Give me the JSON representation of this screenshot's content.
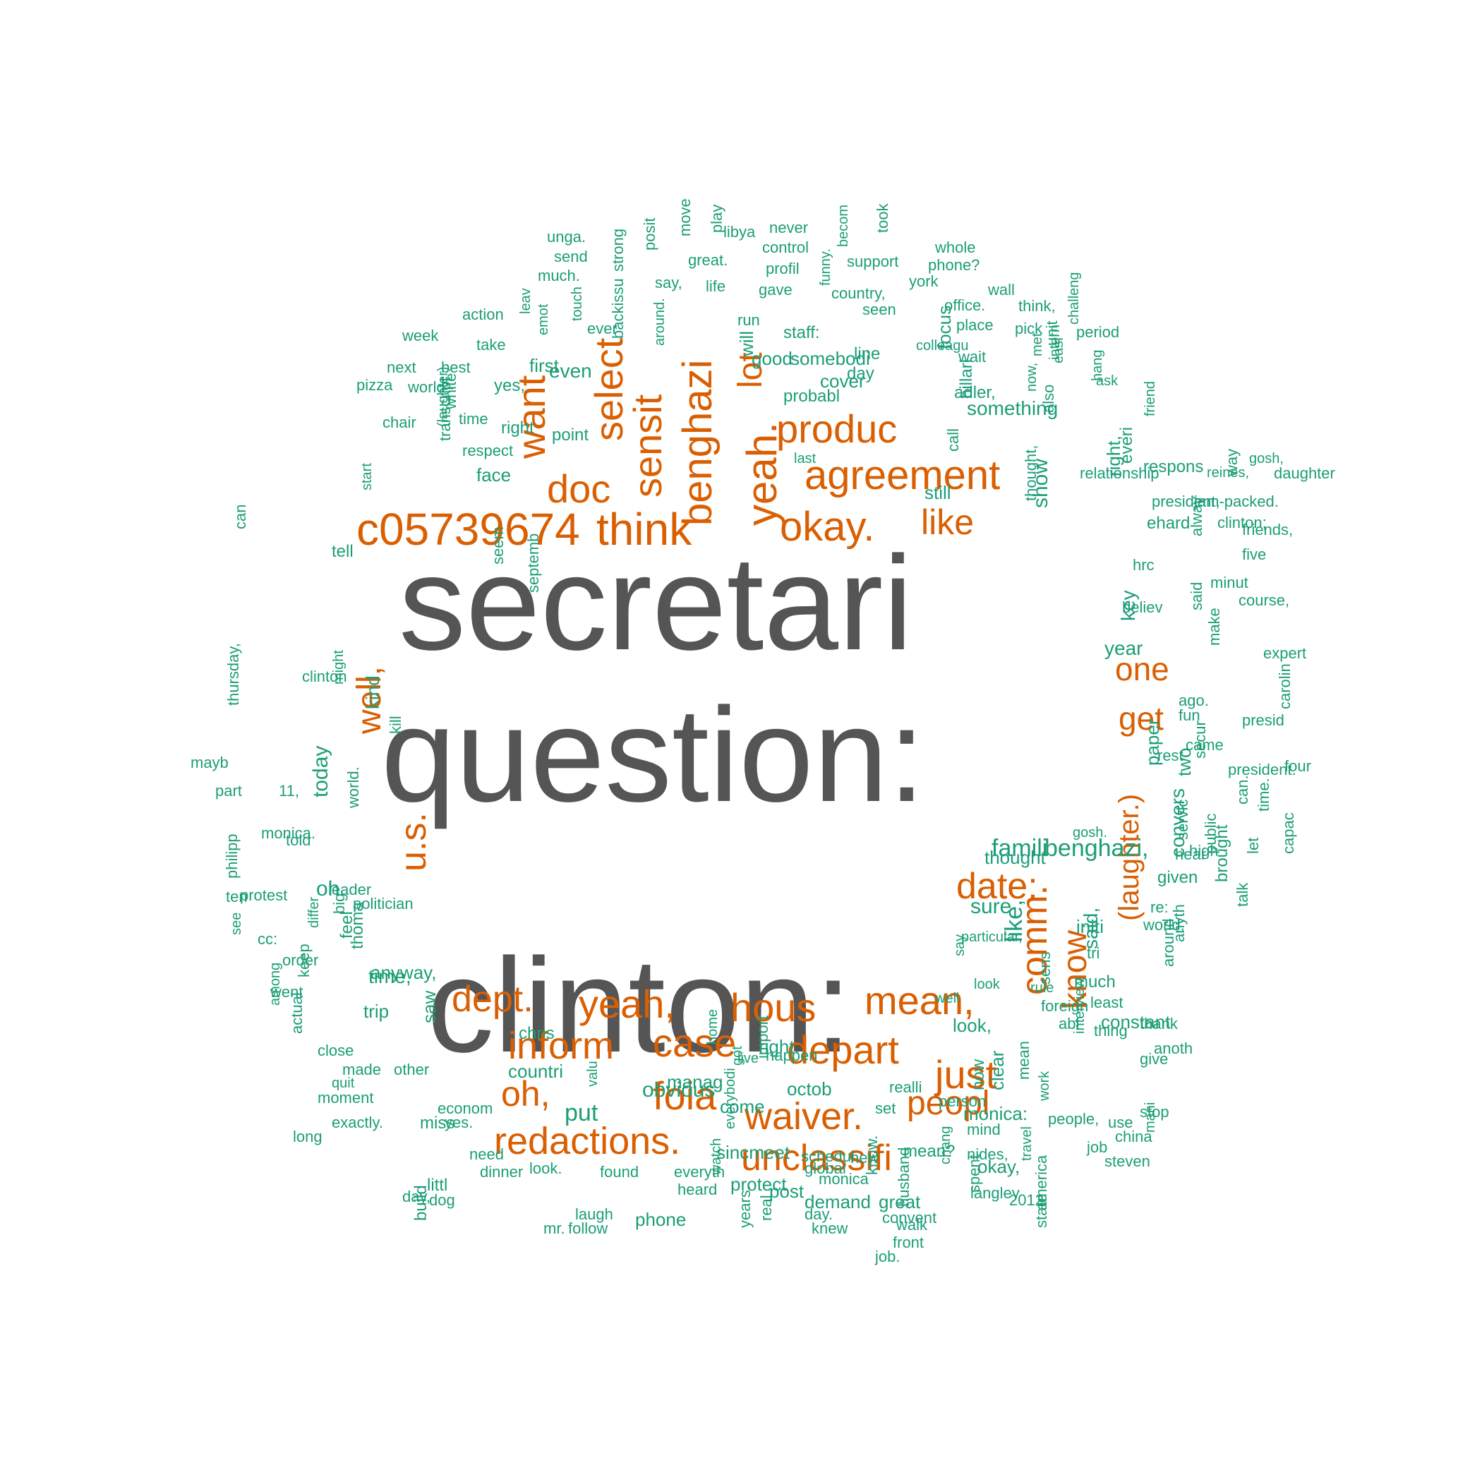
{
  "colors": {
    "tier1": "#555555",
    "tier2": "#d95f02",
    "tier3": "#1b9e77"
  },
  "words": [
    {
      "t": "secretari",
      "c": "tier1"
    },
    {
      "t": "question:",
      "c": "tier1"
    },
    {
      "t": "clinton:",
      "c": "tier1"
    },
    {
      "t": "c05739674",
      "c": "tier2"
    },
    {
      "t": "think",
      "c": "tier2"
    },
    {
      "t": "okay.",
      "c": "tier2"
    },
    {
      "t": "agreement",
      "c": "tier2"
    },
    {
      "t": "produc",
      "c": "tier2"
    },
    {
      "t": "doc",
      "c": "tier2"
    },
    {
      "t": "like",
      "c": "tier2"
    },
    {
      "t": "benghazi",
      "c": "tier2"
    },
    {
      "t": "sensit",
      "c": "tier2"
    },
    {
      "t": "select",
      "c": "tier2"
    },
    {
      "t": "want",
      "c": "tier2"
    },
    {
      "t": "yeah.",
      "c": "tier2"
    },
    {
      "t": "lot",
      "c": "tier2"
    },
    {
      "t": "one",
      "c": "tier2"
    },
    {
      "t": "get",
      "c": "tier2"
    },
    {
      "t": "well,",
      "c": "tier2"
    },
    {
      "t": "u.s.",
      "c": "tier2"
    },
    {
      "t": "date:",
      "c": "tier2"
    },
    {
      "t": "(laughter.)",
      "c": "tier2"
    },
    {
      "t": "dept.",
      "c": "tier2"
    },
    {
      "t": "yeah,",
      "c": "tier2"
    },
    {
      "t": "hous",
      "c": "tier2"
    },
    {
      "t": "mean,",
      "c": "tier2"
    },
    {
      "t": "comm.",
      "c": "tier2"
    },
    {
      "t": "know",
      "c": "tier2"
    },
    {
      "t": "inform",
      "c": "tier2"
    },
    {
      "t": "case",
      "c": "tier2"
    },
    {
      "t": "depart",
      "c": "tier2"
    },
    {
      "t": "just",
      "c": "tier2"
    },
    {
      "t": "oh,",
      "c": "tier2"
    },
    {
      "t": "foia",
      "c": "tier2"
    },
    {
      "t": "waiver.",
      "c": "tier2"
    },
    {
      "t": "peopl",
      "c": "tier2"
    },
    {
      "t": "redactions.",
      "c": "tier2"
    },
    {
      "t": "unclassifi",
      "c": "tier2"
    },
    {
      "t": "unga.",
      "c": "tier3"
    },
    {
      "t": "send",
      "c": "tier3"
    },
    {
      "t": "much.",
      "c": "tier3"
    },
    {
      "t": "strong",
      "c": "tier3"
    },
    {
      "t": "posit",
      "c": "tier3"
    },
    {
      "t": "move",
      "c": "tier3"
    },
    {
      "t": "play",
      "c": "tier3"
    },
    {
      "t": "libya",
      "c": "tier3"
    },
    {
      "t": "never",
      "c": "tier3"
    },
    {
      "t": "becom",
      "c": "tier3"
    },
    {
      "t": "took",
      "c": "tier3"
    },
    {
      "t": "whole",
      "c": "tier3"
    },
    {
      "t": "control",
      "c": "tier3"
    },
    {
      "t": "great.",
      "c": "tier3"
    },
    {
      "t": "profil",
      "c": "tier3"
    },
    {
      "t": "support",
      "c": "tier3"
    },
    {
      "t": "phone?",
      "c": "tier3"
    },
    {
      "t": "say,",
      "c": "tier3"
    },
    {
      "t": "life",
      "c": "tier3"
    },
    {
      "t": "funny.",
      "c": "tier3"
    },
    {
      "t": "york",
      "c": "tier3"
    },
    {
      "t": "wall",
      "c": "tier3"
    },
    {
      "t": "leav",
      "c": "tier3"
    },
    {
      "t": "touch",
      "c": "tier3"
    },
    {
      "t": "ever",
      "c": "tier3"
    },
    {
      "t": "backissu",
      "c": "tier3"
    },
    {
      "t": "around.",
      "c": "tier3"
    },
    {
      "t": "gave",
      "c": "tier3"
    },
    {
      "t": "country,",
      "c": "tier3"
    },
    {
      "t": "action",
      "c": "tier3"
    },
    {
      "t": "emot",
      "c": "tier3"
    },
    {
      "t": "run",
      "c": "tier3"
    },
    {
      "t": "seen",
      "c": "tier3"
    },
    {
      "t": "office.",
      "c": "tier3"
    },
    {
      "t": "think,",
      "c": "tier3"
    },
    {
      "t": "staff:",
      "c": "tier3"
    },
    {
      "t": "place",
      "c": "tier3"
    },
    {
      "t": "pick",
      "c": "tier3"
    },
    {
      "t": "period",
      "c": "tier3"
    },
    {
      "t": "week",
      "c": "tier3"
    },
    {
      "t": "take",
      "c": "tier3"
    },
    {
      "t": "first",
      "c": "tier3"
    },
    {
      "t": "will",
      "c": "tier3"
    },
    {
      "t": "good",
      "c": "tier3"
    },
    {
      "t": "somebodi",
      "c": "tier3"
    },
    {
      "t": "line",
      "c": "tier3"
    },
    {
      "t": "colleagu",
      "c": "tier3"
    },
    {
      "t": "wait",
      "c": "tier3"
    },
    {
      "t": "unit",
      "c": "tier3"
    },
    {
      "t": "challeng",
      "c": "tier3"
    },
    {
      "t": "next",
      "c": "tier3"
    },
    {
      "t": "best",
      "c": "tier3"
    },
    {
      "t": "day",
      "c": "tier3"
    },
    {
      "t": "focus",
      "c": "tier3"
    },
    {
      "t": "met",
      "c": "tier3"
    },
    {
      "t": "hang",
      "c": "tier3"
    },
    {
      "t": "pizza",
      "c": "tier3"
    },
    {
      "t": "world",
      "c": "tier3"
    },
    {
      "t": "yes,",
      "c": "tier3"
    },
    {
      "t": "even",
      "c": "tier3"
    },
    {
      "t": "cover",
      "c": "tier3"
    },
    {
      "t": "intern",
      "c": "tier3"
    },
    {
      "t": "probabl",
      "c": "tier3"
    },
    {
      "t": "ask",
      "c": "tier3"
    },
    {
      "t": "easi",
      "c": "tier3"
    },
    {
      "t": "adler,",
      "c": "tier3"
    },
    {
      "t": "hillari",
      "c": "tier3"
    },
    {
      "t": "something",
      "c": "tier3"
    },
    {
      "t": "now,",
      "c": "tier3"
    },
    {
      "t": "friend",
      "c": "tier3"
    },
    {
      "t": "chair",
      "c": "tier3"
    },
    {
      "t": "white",
      "c": "tier3"
    },
    {
      "t": "time",
      "c": "tier3"
    },
    {
      "t": "also",
      "c": "tier3"
    },
    {
      "t": "right",
      "c": "tier3"
    },
    {
      "t": "(laughter)",
      "c": "tier3"
    },
    {
      "t": "point",
      "c": "tier3"
    },
    {
      "t": "transcript",
      "c": "tier3"
    },
    {
      "t": "respect",
      "c": "tier3"
    },
    {
      "t": "last",
      "c": "tier3"
    },
    {
      "t": "call",
      "c": "tier3"
    },
    {
      "t": "face",
      "c": "tier3"
    },
    {
      "t": "relationship",
      "c": "tier3"
    },
    {
      "t": "still",
      "c": "tier3"
    },
    {
      "t": "way",
      "c": "tier3"
    },
    {
      "t": "reines,",
      "c": "tier3"
    },
    {
      "t": "gosh,",
      "c": "tier3"
    },
    {
      "t": "right,",
      "c": "tier3"
    },
    {
      "t": "everi",
      "c": "tier3"
    },
    {
      "t": "respons",
      "c": "tier3"
    },
    {
      "t": "daughter",
      "c": "tier3"
    },
    {
      "t": "start",
      "c": "tier3"
    },
    {
      "t": "thought,",
      "c": "tier3"
    },
    {
      "t": "president,",
      "c": "tier3"
    },
    {
      "t": "jam-packed.",
      "c": "tier3"
    },
    {
      "t": "show",
      "c": "tier3"
    },
    {
      "t": "ehard",
      "c": "tier3"
    },
    {
      "t": "clinton;",
      "c": "tier3"
    },
    {
      "t": "friends,",
      "c": "tier3"
    },
    {
      "t": "can",
      "c": "tier3"
    },
    {
      "t": "tell",
      "c": "tier3"
    },
    {
      "t": "alway",
      "c": "tier3"
    },
    {
      "t": "seem",
      "c": "tier3"
    },
    {
      "t": "five",
      "c": "tier3"
    },
    {
      "t": "hrc",
      "c": "tier3"
    },
    {
      "t": "septemb",
      "c": "tier3"
    },
    {
      "t": "minut",
      "c": "tier3"
    },
    {
      "t": "course,",
      "c": "tier3"
    },
    {
      "t": "believ",
      "c": "tier3"
    },
    {
      "t": "said",
      "c": "tier3"
    },
    {
      "t": "key",
      "c": "tier3"
    },
    {
      "t": "year",
      "c": "tier3"
    },
    {
      "t": "expert",
      "c": "tier3"
    },
    {
      "t": "make",
      "c": "tier3"
    },
    {
      "t": "clinton",
      "c": "tier3"
    },
    {
      "t": "might",
      "c": "tier3"
    },
    {
      "t": "ago.",
      "c": "tier3"
    },
    {
      "t": "thursday,",
      "c": "tier3"
    },
    {
      "t": "carolin",
      "c": "tier3"
    },
    {
      "t": "presid",
      "c": "tier3"
    },
    {
      "t": "fun",
      "c": "tier3"
    },
    {
      "t": "kind",
      "c": "tier3"
    },
    {
      "t": "came",
      "c": "tier3"
    },
    {
      "t": "kill",
      "c": "tier3"
    },
    {
      "t": "rest",
      "c": "tier3"
    },
    {
      "t": "secur",
      "c": "tier3"
    },
    {
      "t": "mayb",
      "c": "tier3"
    },
    {
      "t": "paper",
      "c": "tier3"
    },
    {
      "t": "two",
      "c": "tier3"
    },
    {
      "t": "president.",
      "c": "tier3"
    },
    {
      "t": "four",
      "c": "tier3"
    },
    {
      "t": "part",
      "c": "tier3"
    },
    {
      "t": "11,",
      "c": "tier3"
    },
    {
      "t": "today",
      "c": "tier3"
    },
    {
      "t": "world.",
      "c": "tier3"
    },
    {
      "t": "can.",
      "c": "tier3"
    },
    {
      "t": "time.",
      "c": "tier3"
    },
    {
      "t": "monica.",
      "c": "tier3"
    },
    {
      "t": "told",
      "c": "tier3"
    },
    {
      "t": "servic",
      "c": "tier3"
    },
    {
      "t": "capac",
      "c": "tier3"
    },
    {
      "t": "philipp",
      "c": "tier3"
    },
    {
      "t": "public",
      "c": "tier3"
    },
    {
      "t": "let",
      "c": "tier3"
    },
    {
      "t": "ten",
      "c": "tier3"
    },
    {
      "t": "leader",
      "c": "tier3"
    },
    {
      "t": "hear",
      "c": "tier3"
    },
    {
      "t": "thought",
      "c": "tier3"
    },
    {
      "t": "famili",
      "c": "tier3"
    },
    {
      "t": "benghazi,",
      "c": "tier3"
    },
    {
      "t": "high",
      "c": "tier3"
    },
    {
      "t": "convers",
      "c": "tier3"
    },
    {
      "t": "oh.",
      "c": "tier3"
    },
    {
      "t": "big",
      "c": "tier3"
    },
    {
      "t": "politician",
      "c": "tier3"
    },
    {
      "t": "gosh.",
      "c": "tier3"
    },
    {
      "t": "given",
      "c": "tier3"
    },
    {
      "t": "brought",
      "c": "tier3"
    },
    {
      "t": "protest",
      "c": "tier3"
    },
    {
      "t": "sure",
      "c": "tier3"
    },
    {
      "t": "like,",
      "c": "tier3"
    },
    {
      "t": "re:",
      "c": "tier3"
    },
    {
      "t": "talk",
      "c": "tier3"
    },
    {
      "t": "see",
      "c": "tier3"
    },
    {
      "t": "cc:",
      "c": "tier3"
    },
    {
      "t": "differ",
      "c": "tier3"
    },
    {
      "t": "feel",
      "c": "tier3"
    },
    {
      "t": "thoma",
      "c": "tier3"
    },
    {
      "t": "said,",
      "c": "tier3"
    },
    {
      "t": "initi",
      "c": "tier3"
    },
    {
      "t": "world,",
      "c": "tier3"
    },
    {
      "t": "particular,",
      "c": "tier3"
    },
    {
      "t": "anyway,",
      "c": "tier3"
    },
    {
      "t": "say",
      "c": "tier3"
    },
    {
      "t": "tri",
      "c": "tier3"
    },
    {
      "t": "anyth",
      "c": "tier3"
    },
    {
      "t": "order",
      "c": "tier3"
    },
    {
      "t": "time,",
      "c": "tier3"
    },
    {
      "t": "look",
      "c": "tier3"
    },
    {
      "t": "rule",
      "c": "tier3"
    },
    {
      "t": "around",
      "c": "tier3"
    },
    {
      "t": "keep",
      "c": "tier3"
    },
    {
      "t": "much",
      "c": "tier3"
    },
    {
      "t": "well",
      "c": "tier3"
    },
    {
      "t": "sens",
      "c": "tier3"
    },
    {
      "t": "least",
      "c": "tier3"
    },
    {
      "t": "went",
      "c": "tier3"
    },
    {
      "t": "trip",
      "c": "tier3"
    },
    {
      "t": "foreign",
      "c": "tier3"
    },
    {
      "t": "among",
      "c": "tier3"
    },
    {
      "t": "constant",
      "c": "tier3"
    },
    {
      "t": "thing",
      "c": "tier3"
    },
    {
      "t": "abl",
      "c": "tier3"
    },
    {
      "t": "look,",
      "c": "tier3"
    },
    {
      "t": "thank",
      "c": "tier3"
    },
    {
      "t": "saw",
      "c": "tier3"
    },
    {
      "t": "home",
      "c": "tier3"
    },
    {
      "t": "chris",
      "c": "tier3"
    },
    {
      "t": "actual",
      "c": "tier3"
    },
    {
      "t": "interview",
      "c": "tier3"
    },
    {
      "t": "happen",
      "c": "tier3"
    },
    {
      "t": "close",
      "c": "tier3"
    },
    {
      "t": "anoth",
      "c": "tier3"
    },
    {
      "t": "countri",
      "c": "tier3"
    },
    {
      "t": "import",
      "c": "tier3"
    },
    {
      "t": "right.",
      "c": "tier3"
    },
    {
      "t": "live",
      "c": "tier3"
    },
    {
      "t": "give",
      "c": "tier3"
    },
    {
      "t": "made",
      "c": "tier3"
    },
    {
      "t": "other",
      "c": "tier3"
    },
    {
      "t": "obvious",
      "c": "tier3"
    },
    {
      "t": "manag",
      "c": "tier3"
    },
    {
      "t": "octob",
      "c": "tier3"
    },
    {
      "t": "got",
      "c": "tier3"
    },
    {
      "t": "come",
      "c": "tier3"
    },
    {
      "t": "realli",
      "c": "tier3"
    },
    {
      "t": "now",
      "c": "tier3"
    },
    {
      "t": "set",
      "c": "tier3"
    },
    {
      "t": "person",
      "c": "tier3"
    },
    {
      "t": "clear",
      "c": "tier3"
    },
    {
      "t": "mean",
      "c": "tier3"
    },
    {
      "t": "stop",
      "c": "tier3"
    },
    {
      "t": "moment",
      "c": "tier3"
    },
    {
      "t": "quit",
      "c": "tier3"
    },
    {
      "t": "valu",
      "c": "tier3"
    },
    {
      "t": "work",
      "c": "tier3"
    },
    {
      "t": "put",
      "c": "tier3"
    },
    {
      "t": "econom",
      "c": "tier3"
    },
    {
      "t": "people,",
      "c": "tier3"
    },
    {
      "t": "exactly.",
      "c": "tier3"
    },
    {
      "t": "yes.",
      "c": "tier3"
    },
    {
      "t": "mind",
      "c": "tier3"
    },
    {
      "t": "use",
      "c": "tier3"
    },
    {
      "t": "china",
      "c": "tier3"
    },
    {
      "t": "mani",
      "c": "tier3"
    },
    {
      "t": "long",
      "c": "tier3"
    },
    {
      "t": "miss",
      "c": "tier3"
    },
    {
      "t": "monica:",
      "c": "tier3"
    },
    {
      "t": "job",
      "c": "tier3"
    },
    {
      "t": "sincmeet",
      "c": "tier3"
    },
    {
      "t": "everybodi",
      "c": "tier3"
    },
    {
      "t": "schedul",
      "c": "tier3"
    },
    {
      "t": "mean?",
      "c": "tier3"
    },
    {
      "t": "steven",
      "c": "tier3"
    },
    {
      "t": "nides,",
      "c": "tier3"
    },
    {
      "t": "okay,",
      "c": "tier3"
    },
    {
      "t": "new",
      "c": "tier3"
    },
    {
      "t": "monica",
      "c": "tier3"
    },
    {
      "t": "chang",
      "c": "tier3"
    },
    {
      "t": "travel",
      "c": "tier3"
    },
    {
      "t": "need",
      "c": "tier3"
    },
    {
      "t": "everyth",
      "c": "tier3"
    },
    {
      "t": "protect",
      "c": "tier3"
    },
    {
      "t": "global",
      "c": "tier3"
    },
    {
      "t": "littl",
      "c": "tier3"
    },
    {
      "t": "dog",
      "c": "tier3"
    },
    {
      "t": "dinner",
      "c": "tier3"
    },
    {
      "t": "look.",
      "c": "tier3"
    },
    {
      "t": "found",
      "c": "tier3"
    },
    {
      "t": "watch",
      "c": "tier3"
    },
    {
      "t": "know.",
      "c": "tier3"
    },
    {
      "t": "heard",
      "c": "tier3"
    },
    {
      "t": "day,",
      "c": "tier3"
    },
    {
      "t": "2012",
      "c": "tier3"
    },
    {
      "t": "post",
      "c": "tier3"
    },
    {
      "t": "great",
      "c": "tier3"
    },
    {
      "t": "langley",
      "c": "tier3"
    },
    {
      "t": "laugh",
      "c": "tier3"
    },
    {
      "t": "phone",
      "c": "tier3"
    },
    {
      "t": "demand",
      "c": "tier3"
    },
    {
      "t": "day.",
      "c": "tier3"
    },
    {
      "t": "spent",
      "c": "tier3"
    },
    {
      "t": "walk",
      "c": "tier3"
    },
    {
      "t": "husband",
      "c": "tier3"
    },
    {
      "t": "america",
      "c": "tier3"
    },
    {
      "t": "state",
      "c": "tier3"
    },
    {
      "t": "mr.",
      "c": "tier3"
    },
    {
      "t": "follow",
      "c": "tier3"
    },
    {
      "t": "real",
      "c": "tier3"
    },
    {
      "t": "knew",
      "c": "tier3"
    },
    {
      "t": "convent",
      "c": "tier3"
    },
    {
      "t": "front",
      "c": "tier3"
    },
    {
      "t": "job.",
      "c": "tier3"
    },
    {
      "t": "build",
      "c": "tier3"
    },
    {
      "t": "years.",
      "c": "tier3"
    },
    {
      "t": "press",
      "c": "tier3"
    },
    {
      "t": "question",
      "c": "tier3"
    }
  ]
}
